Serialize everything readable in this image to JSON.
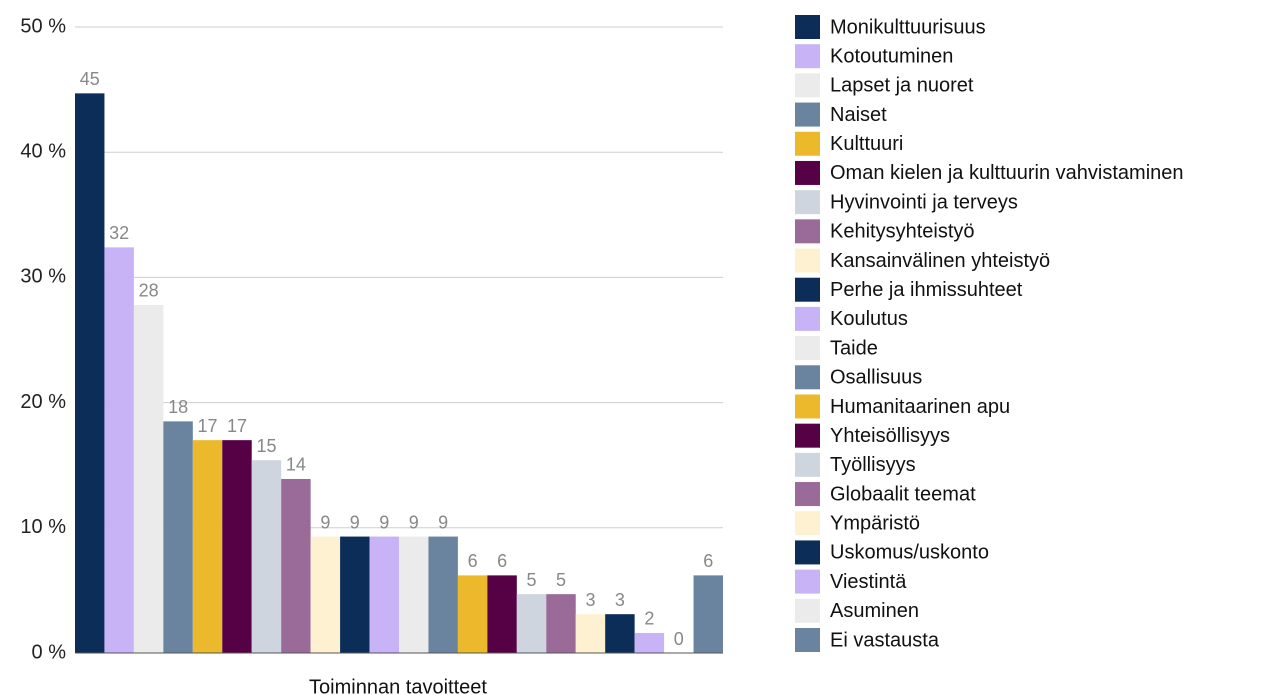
{
  "chart_data": {
    "type": "bar",
    "x_label": "Toiminnan tavoitteet",
    "categories": [
      "Toiminnan tavoitteet"
    ],
    "ylim": [
      0,
      50
    ],
    "yticks": [
      {
        "value": 0,
        "label": "0 %"
      },
      {
        "value": 10,
        "label": "10 %"
      },
      {
        "value": 20,
        "label": "20 %"
      },
      {
        "value": 30,
        "label": "30 %"
      },
      {
        "value": 40,
        "label": "40 %"
      },
      {
        "value": 50,
        "label": "50 %"
      }
    ],
    "grid": true,
    "legend": "right",
    "series": [
      {
        "name": "Monikulttuurisuus",
        "color": "#0c2d57",
        "values": [
          44.7
        ],
        "value_labels": [
          "45"
        ]
      },
      {
        "name": "Kotoutuminen",
        "color": "#c9b3f7",
        "values": [
          32.4
        ],
        "value_labels": [
          "32"
        ]
      },
      {
        "name": "Lapset ja nuoret",
        "color": "#ebebeb",
        "values": [
          27.8
        ],
        "value_labels": [
          "28"
        ]
      },
      {
        "name": "Naiset",
        "color": "#6a84a0",
        "values": [
          18.5
        ],
        "value_labels": [
          "18"
        ]
      },
      {
        "name": "Kulttuuri",
        "color": "#ecb92c",
        "values": [
          17.0
        ],
        "value_labels": [
          "17"
        ]
      },
      {
        "name": "Oman kielen ja kulttuurin vahvistaminen",
        "color": "#560046",
        "values": [
          17.0
        ],
        "value_labels": [
          "17"
        ]
      },
      {
        "name": "Hyvinvointi ja terveys",
        "color": "#cfd5df",
        "values": [
          15.4
        ],
        "value_labels": [
          "15"
        ]
      },
      {
        "name": "Kehitysyhteistyö",
        "color": "#9a6a99",
        "values": [
          13.9
        ],
        "value_labels": [
          "14"
        ]
      },
      {
        "name": "Kansainvälinen yhteistyö",
        "color": "#fdf1d2",
        "values": [
          9.3
        ],
        "value_labels": [
          "9"
        ]
      },
      {
        "name": "Perhe ja ihmissuhteet",
        "color": "#0c2d57",
        "values": [
          9.3
        ],
        "value_labels": [
          "9"
        ]
      },
      {
        "name": "Koulutus",
        "color": "#c9b3f7",
        "values": [
          9.3
        ],
        "value_labels": [
          "9"
        ]
      },
      {
        "name": "Taide",
        "color": "#ebebeb",
        "values": [
          9.3
        ],
        "value_labels": [
          "9"
        ]
      },
      {
        "name": "Osallisuus",
        "color": "#6a84a0",
        "values": [
          9.3
        ],
        "value_labels": [
          "9"
        ]
      },
      {
        "name": "Humanitaarinen apu",
        "color": "#ecb92c",
        "values": [
          6.2
        ],
        "value_labels": [
          "6"
        ]
      },
      {
        "name": "Yhteisöllisyys",
        "color": "#560046",
        "values": [
          6.2
        ],
        "value_labels": [
          "6"
        ]
      },
      {
        "name": "Työllisyys",
        "color": "#cfd5df",
        "values": [
          4.7
        ],
        "value_labels": [
          "5"
        ]
      },
      {
        "name": "Globaalit teemat",
        "color": "#9a6a99",
        "values": [
          4.7
        ],
        "value_labels": [
          "5"
        ]
      },
      {
        "name": "Ympäristö",
        "color": "#fdf1d2",
        "values": [
          3.1
        ],
        "value_labels": [
          "3"
        ]
      },
      {
        "name": "Uskomus/uskonto",
        "color": "#0c2d57",
        "values": [
          3.1
        ],
        "value_labels": [
          "3"
        ]
      },
      {
        "name": "Viestintä",
        "color": "#c9b3f7",
        "values": [
          1.6
        ],
        "value_labels": [
          "2"
        ]
      },
      {
        "name": "Asuminen",
        "color": "#ebebeb",
        "values": [
          0
        ],
        "value_labels": [
          "0"
        ]
      },
      {
        "name": "Ei vastausta",
        "color": "#6a84a0",
        "values": [
          6.2
        ],
        "value_labels": [
          "6"
        ]
      }
    ]
  }
}
